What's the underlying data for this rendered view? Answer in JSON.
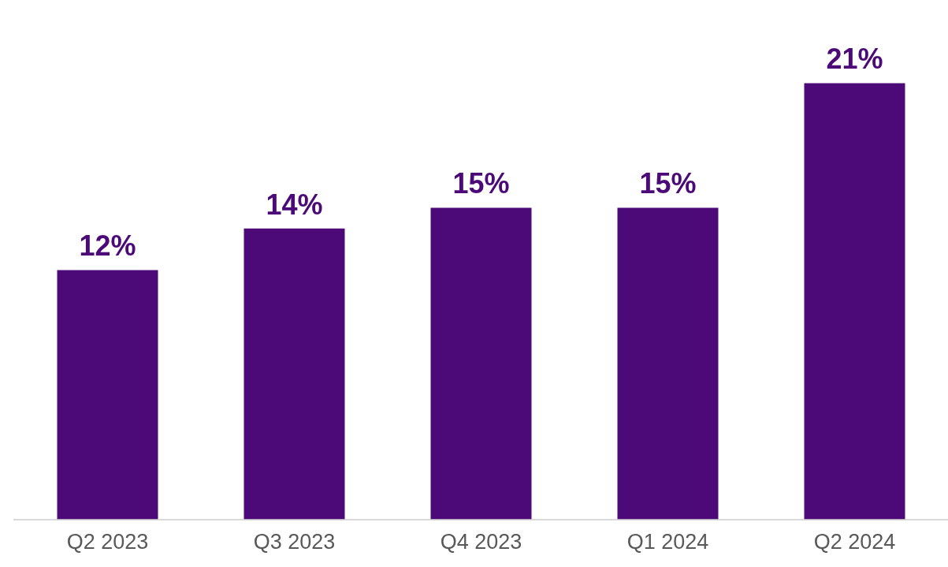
{
  "chart_data": {
    "type": "bar",
    "categories": [
      "Q2 2023",
      "Q3 2023",
      "Q4 2023",
      "Q1 2024",
      "Q2 2024"
    ],
    "values": [
      12,
      14,
      15,
      15,
      21
    ],
    "color": "#4b0a78",
    "value_labels": [
      "12%",
      "14%",
      "15%",
      "15%",
      "21%"
    ],
    "grid": false,
    "legend": false
  }
}
